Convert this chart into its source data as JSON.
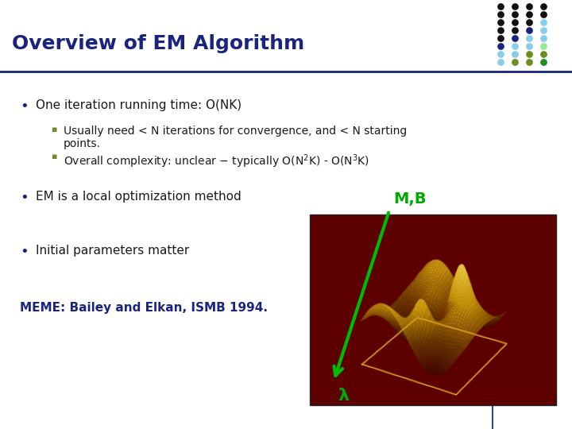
{
  "title": "Overview of EM Algorithm",
  "title_color": "#1A237E",
  "title_fontsize": 18,
  "background_color": "#FFFFFF",
  "header_line_color": "#1A237E",
  "bullet1": "One iteration running time: O(NK)",
  "sub1a_line1": "Usually need < N iterations for convergence, and < N starting",
  "sub1a_line2": "points.",
  "sub1b_pre": "Overall complexity: unclear – typically O(N",
  "sub1b_mid": "K) - O(N",
  "sub1b_end": "K)",
  "bullet2": "EM is a local optimization method",
  "bullet3": "Initial parameters matter",
  "meme_text": "MEME: Bailey and Elkan, ISMB 1994.",
  "meme_color": "#1A237E",
  "bullet_color": "#1A237E",
  "sub_bullet_color": "#6B8E23",
  "text_color": "#1A1A1A",
  "arrow_color": "#00BB00",
  "mb_label": "M,B",
  "lambda_label": "λ",
  "label_color": "#00AA00",
  "dot_colors": {
    "row1": [
      "#111111",
      "#111111",
      "#111111",
      "#111111"
    ],
    "row2": [
      "#111111",
      "#111111",
      "#111111",
      "#111111"
    ],
    "row3": [
      "#111111",
      "#111111",
      "#111111",
      "#87CEEB"
    ],
    "row4": [
      "#111111",
      "#111111",
      "#1A237E",
      "#87CEEB"
    ],
    "row5": [
      "#111111",
      "#1A237E",
      "#87CEEB",
      "#87CEEB"
    ],
    "row6": [
      "#1A237E",
      "#87CEEB",
      "#87CEEB",
      "#90EE90"
    ],
    "row7": [
      "#87CEEB",
      "#87CEEB",
      "#6B8E23",
      "#6B8E23"
    ],
    "row8": [
      "#87CEEB",
      "#6B8E23",
      "#6B8E23",
      "#228B22"
    ]
  }
}
